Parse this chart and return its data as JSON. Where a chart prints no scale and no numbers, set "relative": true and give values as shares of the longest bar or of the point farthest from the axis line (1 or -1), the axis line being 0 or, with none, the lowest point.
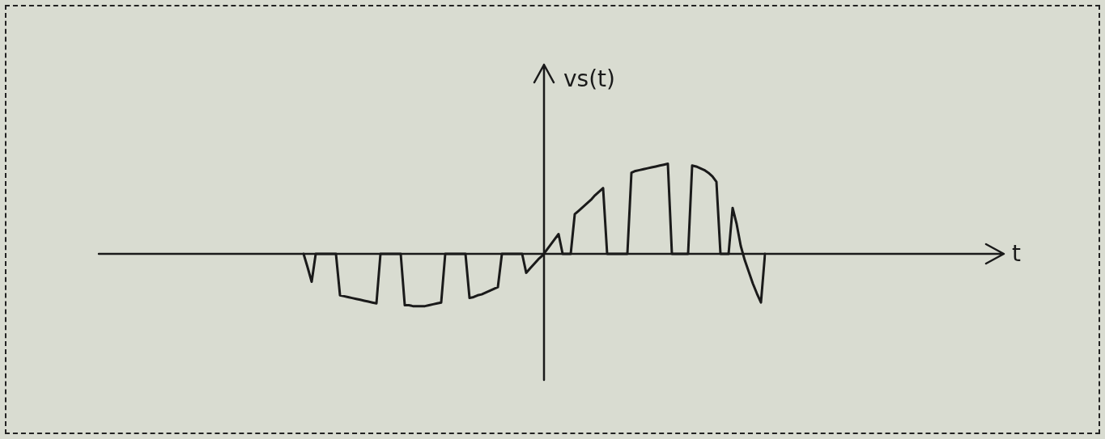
{
  "chart_data": {
    "type": "line",
    "relative": true,
    "ylabel": "vs(t)",
    "annotations": [
      "t"
    ],
    "categories": [
      null,
      null,
      null,
      null,
      null,
      null,
      null,
      null,
      null,
      null,
      null,
      null,
      null,
      null,
      null,
      null,
      null,
      null,
      null,
      null,
      null,
      null,
      null,
      null,
      null,
      null,
      null,
      null,
      null,
      null,
      null,
      null,
      null,
      null,
      null,
      null,
      null,
      null,
      null,
      null,
      null,
      null,
      null,
      null,
      null,
      null,
      null,
      null,
      null,
      null,
      null,
      null,
      null,
      null,
      null,
      null,
      null,
      null,
      null,
      null,
      null,
      null,
      null,
      null,
      null,
      null,
      null,
      null,
      null,
      null,
      null,
      null,
      null,
      null,
      null,
      null,
      null,
      null,
      null,
      null,
      null,
      null,
      null,
      null,
      null,
      null,
      null,
      null,
      null,
      null,
      null,
      null,
      null,
      null,
      null,
      null,
      null,
      null,
      null,
      null,
      null,
      null,
      null,
      null,
      null,
      null,
      null,
      null,
      null,
      null,
      null,
      null,
      null,
      null,
      null
    ],
    "series": [
      {
        "color": "#1a1a1a",
        "values": [
          0,
          -0.15,
          -0.31,
          0,
          0,
          0,
          0,
          0,
          0,
          -0.46,
          -0.47,
          -0.48,
          -0.49,
          -0.5,
          -0.51,
          -0.52,
          -0.53,
          -0.54,
          -0.55,
          0,
          0,
          0,
          0,
          0,
          0,
          -0.57,
          -0.57,
          -0.58,
          -0.58,
          -0.58,
          -0.58,
          -0.57,
          -0.56,
          -0.55,
          -0.54,
          0,
          0,
          0,
          0,
          0,
          0,
          -0.49,
          -0.48,
          -0.46,
          -0.45,
          -0.43,
          -0.41,
          -0.39,
          -0.37,
          0,
          0,
          0,
          0,
          0,
          0,
          -0.21,
          -0.16,
          -0.11,
          -0.06,
          -0.02,
          0.04,
          0.1,
          0.16,
          0.22,
          0,
          0,
          0,
          0.44,
          0.48,
          0.52,
          0.56,
          0.6,
          0.65,
          0.69,
          0.73,
          0,
          0,
          0,
          0,
          0,
          0,
          0.9,
          0.92,
          0.93,
          0.94,
          0.95,
          0.96,
          0.97,
          0.98,
          0.99,
          1,
          0,
          0,
          0,
          0,
          0,
          0.98,
          0.97,
          0.95,
          0.93,
          0.9,
          0.86,
          0.8,
          0,
          0,
          0,
          0.51,
          0.33,
          0.09,
          -0.07,
          -0.2,
          -0.33,
          -0.44,
          -0.54,
          0
        ]
      }
    ]
  }
}
